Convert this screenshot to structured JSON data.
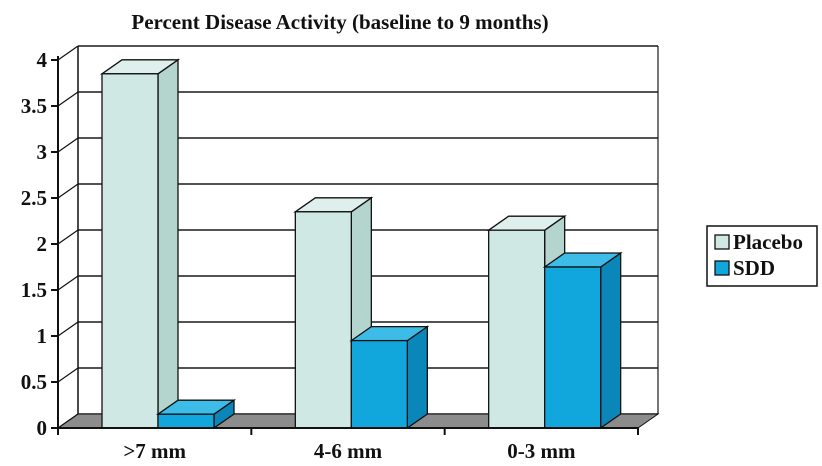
{
  "chart_data": {
    "type": "bar",
    "title": "Percent Disease Activity (baseline to 9 months)",
    "xlabel": "",
    "ylabel": "",
    "categories": [
      ">7 mm",
      "4-6 mm",
      "0-3 mm"
    ],
    "series": [
      {
        "name": "Placebo",
        "values": [
          3.85,
          2.35,
          2.15
        ]
      },
      {
        "name": "SDD",
        "values": [
          0.15,
          0.95,
          1.75
        ]
      }
    ],
    "ylim": [
      0,
      4
    ],
    "yticks": [
      {
        "value": 0,
        "label": "0"
      },
      {
        "value": 0.5,
        "label": "0.5"
      },
      {
        "value": 1,
        "label": "1"
      },
      {
        "value": 1.5,
        "label": "1.5"
      },
      {
        "value": 2,
        "label": "2"
      },
      {
        "value": 2.5,
        "label": "2.5"
      },
      {
        "value": 3,
        "label": "3"
      },
      {
        "value": 3.5,
        "label": "3.5"
      },
      {
        "value": 4,
        "label": "4"
      }
    ],
    "grid": true,
    "style": "3d-clustered-column",
    "legend_position": "right",
    "colors": {
      "Placebo": {
        "front": "#cfe8e3",
        "side": "#b4d4ce",
        "top": "#dfefeb"
      },
      "SDD": {
        "front": "#11a7dc",
        "side": "#0a86b8",
        "top": "#3cbce6"
      },
      "floor": "#8c8c8c",
      "gridline": "#1a1a1a",
      "outline": "#111111"
    }
  }
}
